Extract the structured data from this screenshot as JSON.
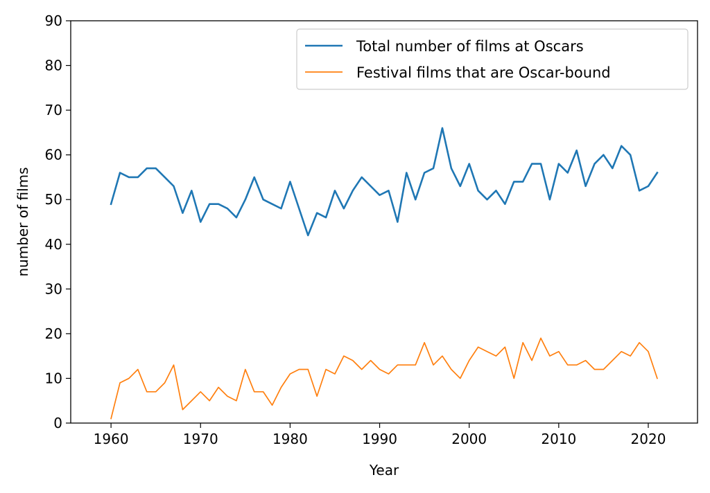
{
  "chart_data": {
    "type": "line",
    "xlabel": "Year",
    "ylabel": "number of films",
    "xlim": [
      1955.5,
      2025.5
    ],
    "ylim": [
      0,
      90
    ],
    "xticks": [
      1960,
      1970,
      1980,
      1990,
      2000,
      2010,
      2020
    ],
    "yticks": [
      0,
      10,
      20,
      30,
      40,
      50,
      60,
      70,
      80,
      90
    ],
    "grid": false,
    "legend_position": "top-right",
    "x": [
      1960,
      1961,
      1962,
      1963,
      1964,
      1965,
      1966,
      1967,
      1968,
      1969,
      1970,
      1971,
      1972,
      1973,
      1974,
      1975,
      1976,
      1977,
      1978,
      1979,
      1980,
      1981,
      1982,
      1983,
      1984,
      1985,
      1986,
      1987,
      1988,
      1989,
      1990,
      1991,
      1992,
      1993,
      1994,
      1995,
      1996,
      1997,
      1998,
      1999,
      2000,
      2001,
      2002,
      2003,
      2004,
      2005,
      2006,
      2007,
      2008,
      2009,
      2010,
      2011,
      2012,
      2013,
      2014,
      2015,
      2016,
      2017,
      2018,
      2019,
      2020,
      2021
    ],
    "series": [
      {
        "name": "Total number of films at Oscars",
        "color": "#1f77b4",
        "values": [
          49,
          56,
          55,
          55,
          57,
          57,
          55,
          53,
          47,
          52,
          45,
          49,
          49,
          48,
          46,
          50,
          55,
          50,
          49,
          48,
          54,
          48,
          42,
          47,
          46,
          52,
          48,
          52,
          55,
          53,
          51,
          52,
          45,
          56,
          50,
          56,
          57,
          66,
          57,
          53,
          58,
          52,
          50,
          52,
          49,
          54,
          54,
          58,
          58,
          50,
          58,
          56,
          61,
          53,
          58,
          60,
          57,
          62,
          60,
          52,
          53,
          56
        ]
      },
      {
        "name": "Festival films that are Oscar-bound",
        "color": "#ff7f0e",
        "values": [
          1,
          9,
          10,
          12,
          7,
          7,
          9,
          13,
          3,
          5,
          7,
          5,
          8,
          6,
          5,
          12,
          7,
          7,
          4,
          8,
          11,
          12,
          12,
          6,
          12,
          11,
          15,
          14,
          12,
          14,
          12,
          11,
          13,
          13,
          13,
          18,
          13,
          15,
          12,
          10,
          14,
          17,
          16,
          15,
          17,
          10,
          18,
          14,
          19,
          15,
          16,
          13,
          13,
          14,
          12,
          12,
          14,
          16,
          15,
          18,
          16,
          10
        ]
      }
    ]
  }
}
